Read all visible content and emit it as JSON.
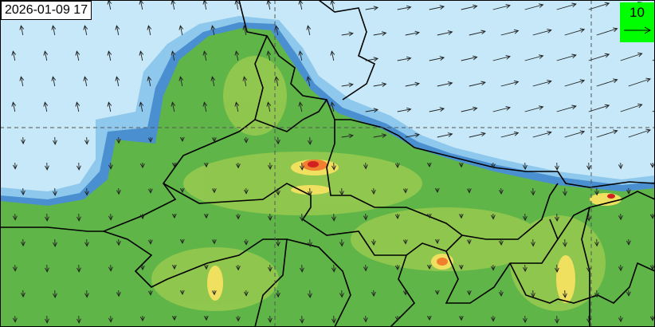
{
  "timestamp": "2026-01-09 17",
  "legend": {
    "wind_reference_value": "10",
    "color": "#00ff00",
    "icon": "wind-arrow-icon"
  },
  "colors": {
    "sea_low": "#c6e8f8",
    "light_blue": "#8ec8ec",
    "blue": "#4a90d0",
    "green": "#5fb548",
    "light_green": "#9ccc50",
    "yellow": "#f0e060",
    "orange": "#f08030",
    "red": "#d02020"
  }
}
